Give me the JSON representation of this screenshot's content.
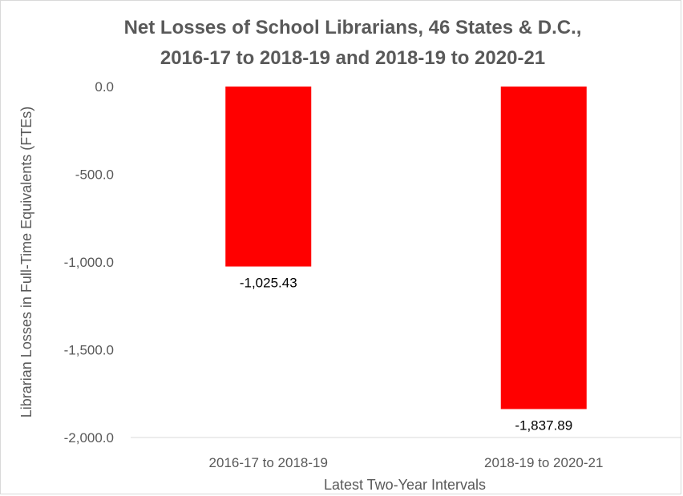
{
  "chart_data": {
    "type": "bar",
    "title_lines": [
      "Net Losses of School Librarians, 46 States & D.C.,",
      "2016-17 to 2018-19 and 2018-19 to 2020-21"
    ],
    "xlabel": "Latest Two-Year Intervals",
    "ylabel": "Librarian Losses in Full-Time Equivalents (FTEs)",
    "categories": [
      "2016-17 to 2018-19",
      "2018-19 to 2020-21"
    ],
    "values": [
      -1025.43,
      -1837.89
    ],
    "data_labels": [
      "-1,025.43",
      "-1,837.89"
    ],
    "ylim": [
      -2000,
      0
    ],
    "yticks": [
      0,
      -500,
      -1000,
      -1500,
      -2000
    ],
    "ytick_labels": [
      "0.0",
      "-500.0",
      "-1,000.0",
      "-1,500.0",
      "-2,000.0"
    ],
    "grid": false,
    "bar_color": "#ff0000"
  }
}
